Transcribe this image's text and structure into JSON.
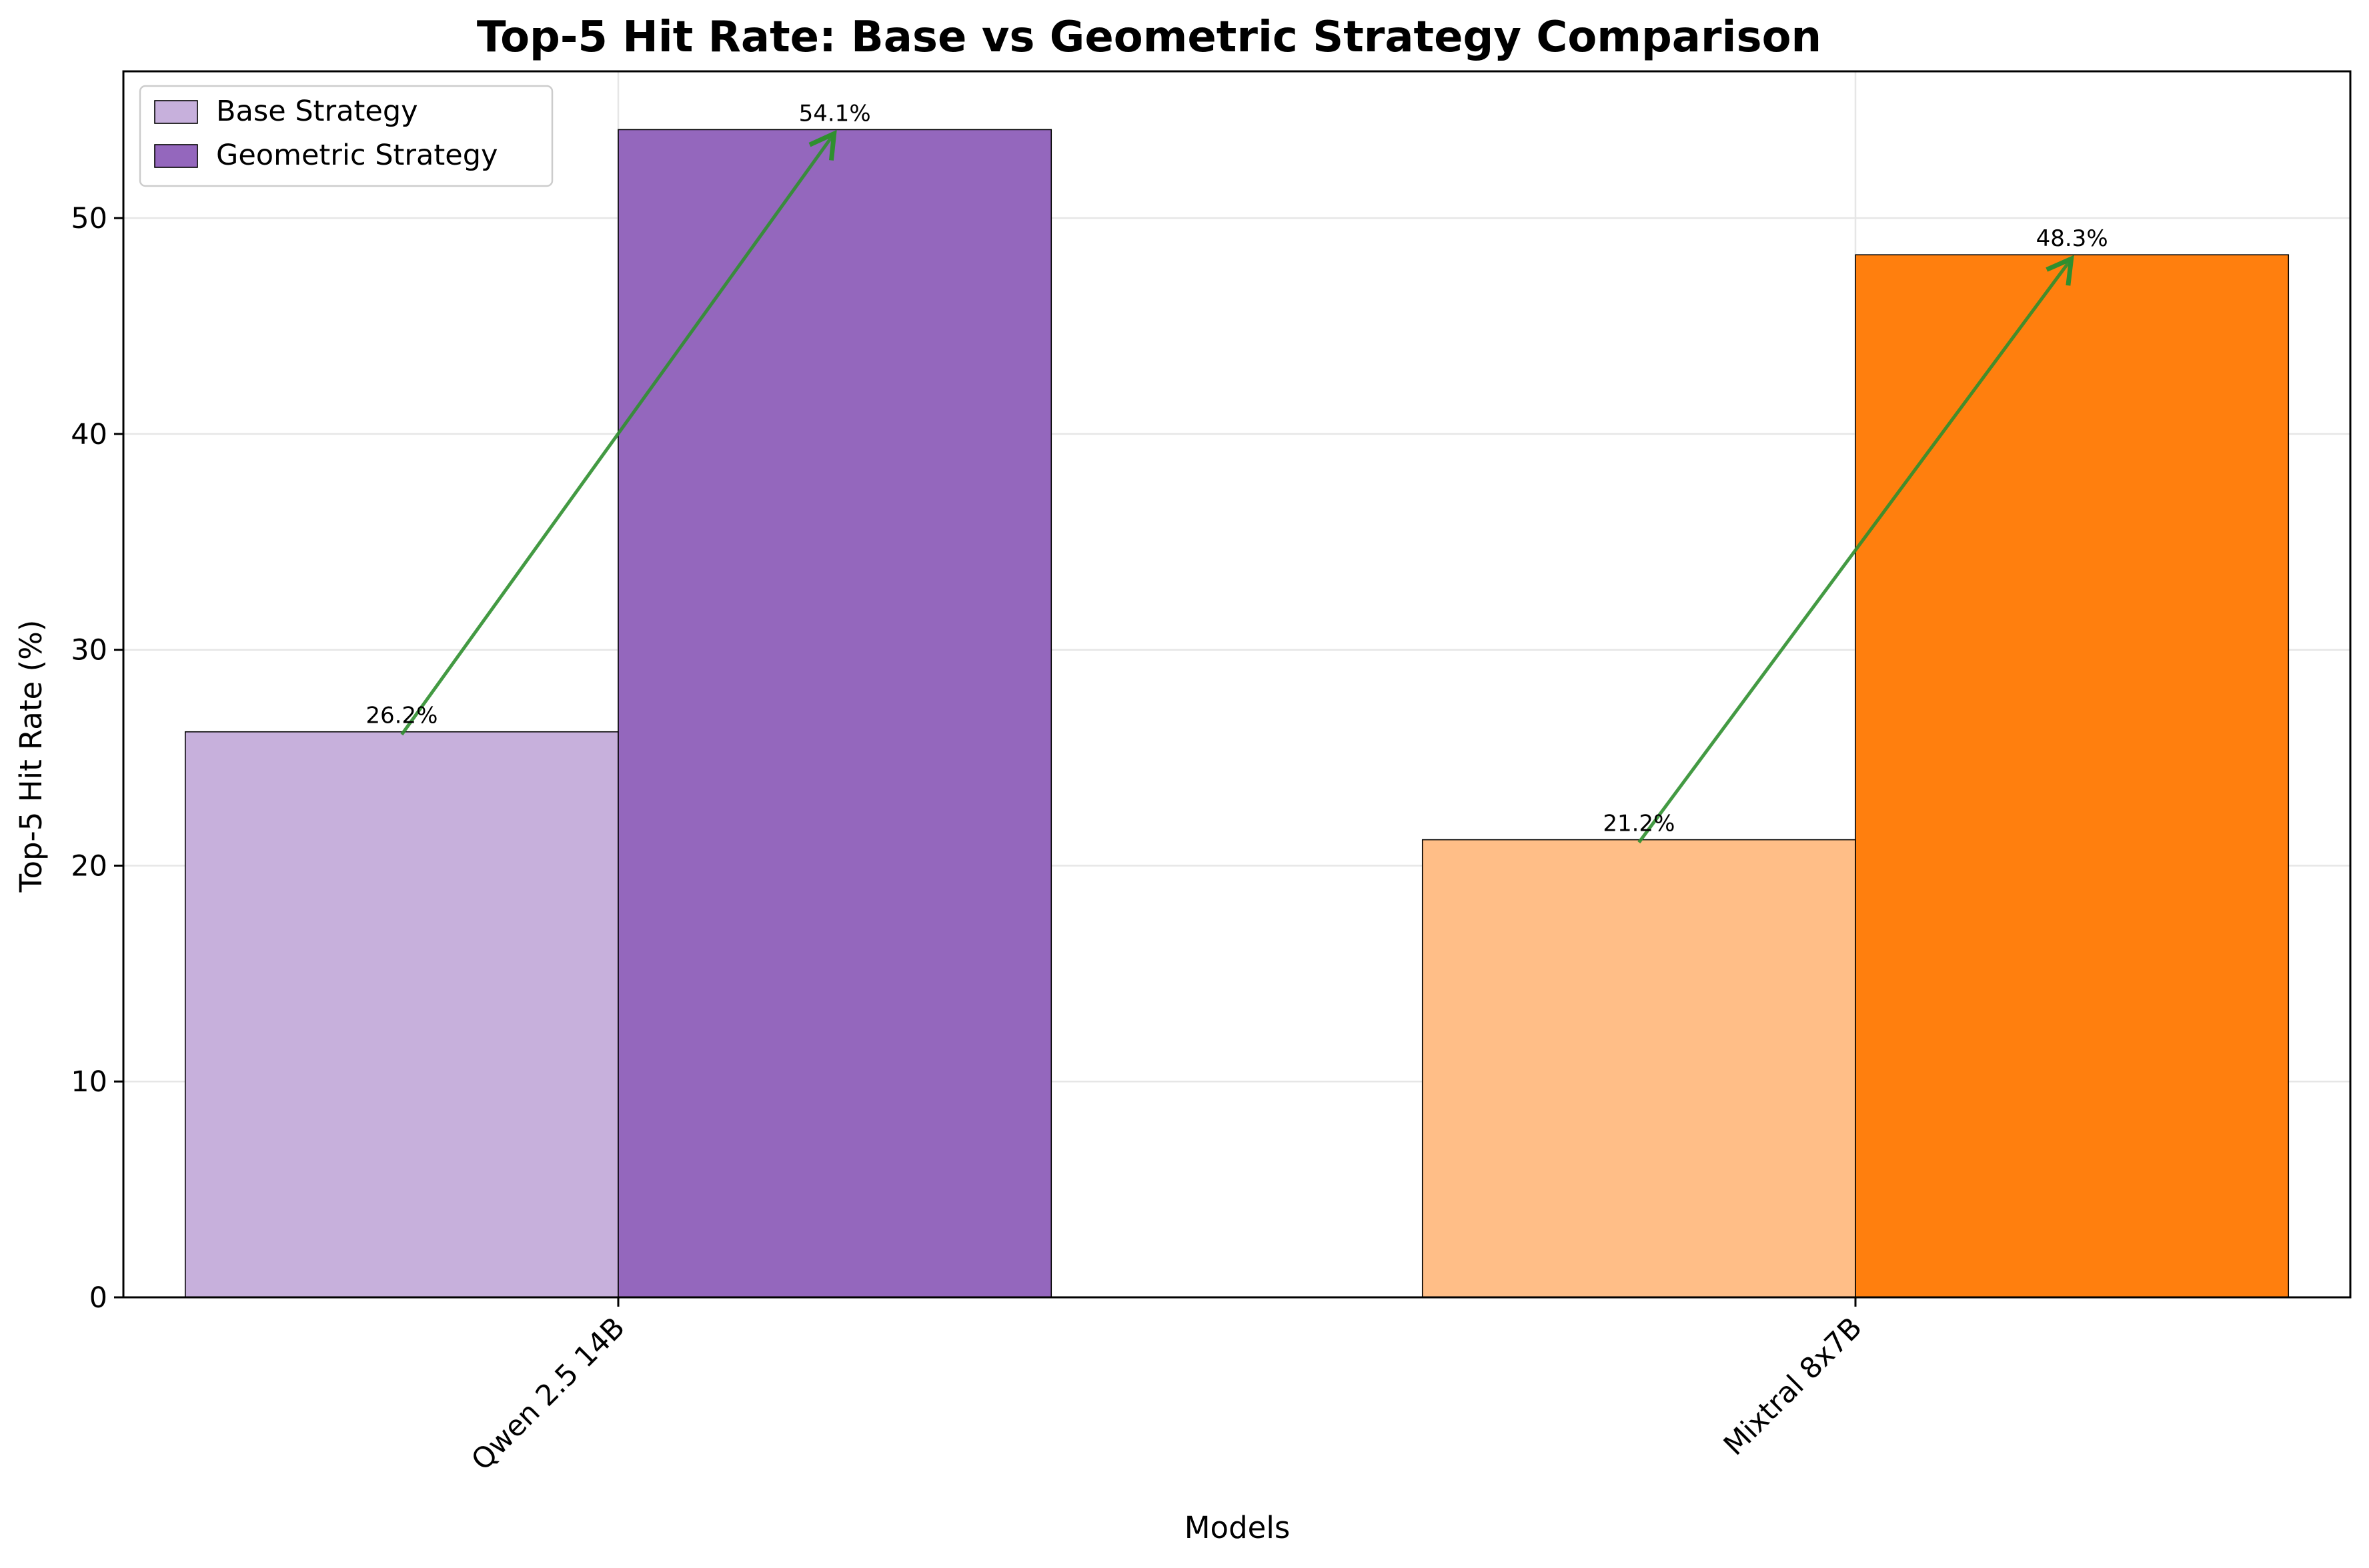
{
  "chart_data": {
    "type": "bar",
    "title": "Top-5 Hit Rate: Base vs Geometric Strategy Comparison",
    "xlabel": "Models",
    "ylabel": "Top-5 Hit Rate (%)",
    "categories": [
      "Qwen 2.5 14B",
      "Mixtral 8x7B"
    ],
    "series": [
      {
        "name": "Base Strategy",
        "values": [
          26.2,
          21.2
        ],
        "colors": [
          "#c7b0dc",
          "#ffbe87"
        ],
        "legend_color": "#c7b0dc"
      },
      {
        "name": "Geometric Strategy",
        "values": [
          54.1,
          48.3
        ],
        "colors": [
          "#9467bd",
          "#ff7f0e"
        ],
        "legend_color": "#9467bd"
      }
    ],
    "data_labels": [
      [
        "26.2%",
        "21.2%"
      ],
      [
        "54.1%",
        "48.3%"
      ]
    ],
    "ylim": [
      0,
      56.8
    ],
    "yticks": [
      0,
      10,
      20,
      30,
      40,
      50
    ],
    "grid": true,
    "legend_position": "top-left",
    "arrow_color": "#2f8f2f"
  }
}
